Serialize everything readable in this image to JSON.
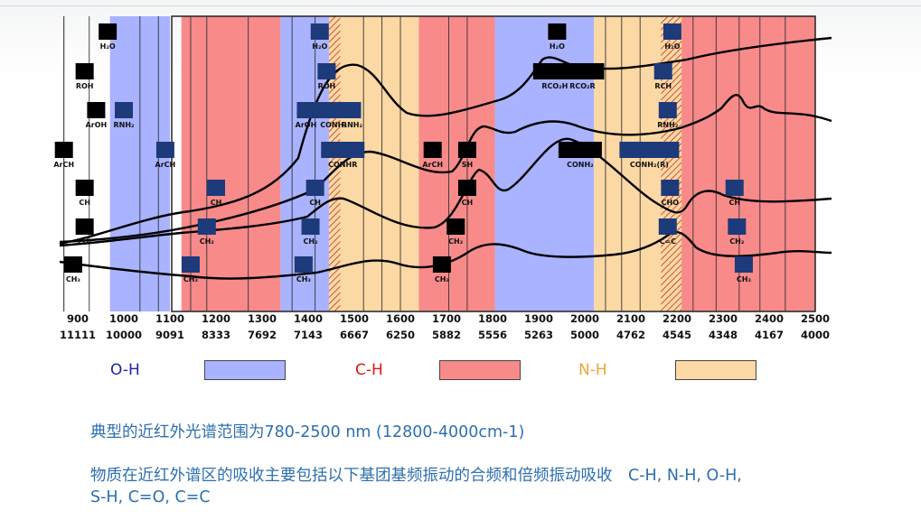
{
  "chart_data": {
    "type": "diagram",
    "x_axis_nm": {
      "ticks": [
        "900",
        "1000",
        "1100",
        "1200",
        "1300",
        "1400",
        "1500",
        "1600",
        "1700",
        "1800",
        "1900",
        "2000",
        "2100",
        "2200",
        "2300",
        "2400",
        "2500"
      ]
    },
    "x_axis_cm": {
      "ticks": [
        "11111",
        "10000",
        "9091",
        "8333",
        "7692",
        "7143",
        "6667",
        "6250",
        "5882",
        "5556",
        "5263",
        "5000",
        "4762",
        "4545",
        "4348",
        "4167",
        "4000"
      ]
    },
    "x_range_nm": [
      870,
      2500
    ],
    "bands": [
      {
        "group": "O-H",
        "from": 970,
        "to": 1100
      },
      {
        "group": "C-H",
        "from": 1125,
        "to": 1340
      },
      {
        "group": "O-H",
        "from": 1340,
        "to": 1445
      },
      {
        "group": "hatched",
        "from": 1445,
        "to": 1470
      },
      {
        "group": "N-H",
        "from": 1470,
        "to": 1640
      },
      {
        "group": "C-H",
        "from": 1640,
        "to": 1805
      },
      {
        "group": "O-H",
        "from": 1805,
        "to": 2020
      },
      {
        "group": "N-H",
        "from": 2020,
        "to": 2165
      },
      {
        "group": "hatched",
        "from": 2165,
        "to": 2210
      },
      {
        "group": "C-H",
        "from": 2210,
        "to": 2500
      }
    ],
    "band_dividers_nm": [
      925,
      1035,
      1075,
      1145,
      1180,
      1270,
      1365,
      1415,
      1520,
      1560,
      1600,
      1705,
      1745,
      2045,
      2080,
      2120,
      2235,
      2285,
      2335,
      2380,
      2435
    ],
    "peak_labels": [
      {
        "text": "H₂O",
        "nm": 965,
        "row": 1
      },
      {
        "text": "ROH",
        "nm": 915,
        "row": 2
      },
      {
        "text": "ArOH",
        "nm": 940,
        "row": 3
      },
      {
        "text": "RNH₂",
        "nm": 1000,
        "row": 3
      },
      {
        "text": "ArCH",
        "nm": 870,
        "row": 4
      },
      {
        "text": "ArCH",
        "nm": 1090,
        "row": 4
      },
      {
        "text": "CH",
        "nm": 915,
        "row": 5
      },
      {
        "text": "CH₂",
        "nm": 915,
        "row": 6
      },
      {
        "text": "CH₃",
        "nm": 890,
        "row": 7
      },
      {
        "text": "CH",
        "nm": 1200,
        "row": 5
      },
      {
        "text": "CH₂",
        "nm": 1180,
        "row": 6
      },
      {
        "text": "CH₃",
        "nm": 1145,
        "row": 7
      },
      {
        "text": "H₂O",
        "nm": 1425,
        "row": 1
      },
      {
        "text": "ROH",
        "nm": 1440,
        "row": 2
      },
      {
        "text": "ArOH",
        "nm": 1395,
        "row": 3
      },
      {
        "text": "CONH₂",
        "nm": 1455,
        "row": 3
      },
      {
        "text": "RNH₂",
        "nm": 1495,
        "row": 3
      },
      {
        "text": "CONHR",
        "nm": 1475,
        "row": 4
      },
      {
        "text": "CH",
        "nm": 1415,
        "row": 5
      },
      {
        "text": "CH₂",
        "nm": 1405,
        "row": 6
      },
      {
        "text": "CH₃",
        "nm": 1390,
        "row": 7
      },
      {
        "text": "ArCH",
        "nm": 1670,
        "row": 4
      },
      {
        "text": "SH",
        "nm": 1745,
        "row": 4
      },
      {
        "text": "CH",
        "nm": 1745,
        "row": 5
      },
      {
        "text": "CH₂",
        "nm": 1720,
        "row": 6
      },
      {
        "text": "CH₃",
        "nm": 1690,
        "row": 7
      },
      {
        "text": "H₂O",
        "nm": 1940,
        "row": 1
      },
      {
        "text": "RCO₂H",
        "nm": 1935,
        "row": 2
      },
      {
        "text": "RCO₂R",
        "nm": 1995,
        "row": 2
      },
      {
        "text": "CONH₂",
        "nm": 1990,
        "row": 4
      },
      {
        "text": "RCH",
        "nm": 2170,
        "row": 2
      },
      {
        "text": "CONH₂(R)",
        "nm": 2140,
        "row": 4
      },
      {
        "text": "H₂O",
        "nm": 2190,
        "row": 1
      },
      {
        "text": "RNH₂",
        "nm": 2180,
        "row": 3
      },
      {
        "text": "CHO",
        "nm": 2185,
        "row": 5
      },
      {
        "text": "C=C",
        "nm": 2180,
        "row": 6
      },
      {
        "text": "CH",
        "nm": 2325,
        "row": 5
      },
      {
        "text": "CH₂",
        "nm": 2330,
        "row": 6
      },
      {
        "text": "CH₃",
        "nm": 2345,
        "row": 7
      }
    ]
  },
  "legend": {
    "items": [
      {
        "label": "O-H",
        "label_color": "#1a26a8",
        "fill": "#a9b3ff"
      },
      {
        "label": "C-H",
        "label_color": "#e21616",
        "fill": "#f88a8a"
      },
      {
        "label": "N-H",
        "label_color": "#f0a338",
        "fill": "#fbd8a4"
      }
    ]
  },
  "text": {
    "line1": "典型的近红外光谱范围为780-2500 nm (12800-4000cm-1)",
    "line2": "物质在近红外谱区的吸收主要包括以下基团基频振动的合频和倍频振动吸收　C-H, N-H, O-H,",
    "line3": "S-H, C=O, C=C"
  }
}
